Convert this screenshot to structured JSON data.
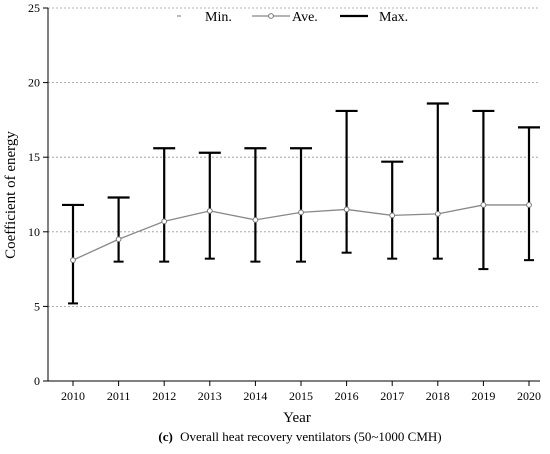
{
  "chart_data": {
    "type": "line",
    "xlabel": "Year",
    "ylabel": "Coefficient of energy",
    "ylim": [
      0,
      25
    ],
    "yticks": [
      0,
      5,
      10,
      15,
      20,
      25
    ],
    "grid": "horizontal-dotted",
    "legend_position": "top",
    "categories": [
      "2010",
      "2011",
      "2012",
      "2013",
      "2014",
      "2015",
      "2016",
      "2017",
      "2018",
      "2019",
      "2020"
    ],
    "series": [
      {
        "name": "Min.",
        "values": [
          5.2,
          8.0,
          8.0,
          8.2,
          8.0,
          8.0,
          8.6,
          8.2,
          8.2,
          7.5,
          8.1
        ]
      },
      {
        "name": "Ave.",
        "values": [
          8.1,
          9.5,
          10.7,
          11.4,
          10.8,
          11.3,
          11.5,
          11.1,
          11.2,
          11.8,
          11.8
        ]
      },
      {
        "name": "Max.",
        "values": [
          11.8,
          12.3,
          15.6,
          15.3,
          15.6,
          15.6,
          18.1,
          14.7,
          18.6,
          18.1,
          17.0
        ]
      }
    ],
    "caption_label": "(c)",
    "caption_text": "Overall heat recovery ventilators (50~1000 CMH)"
  }
}
